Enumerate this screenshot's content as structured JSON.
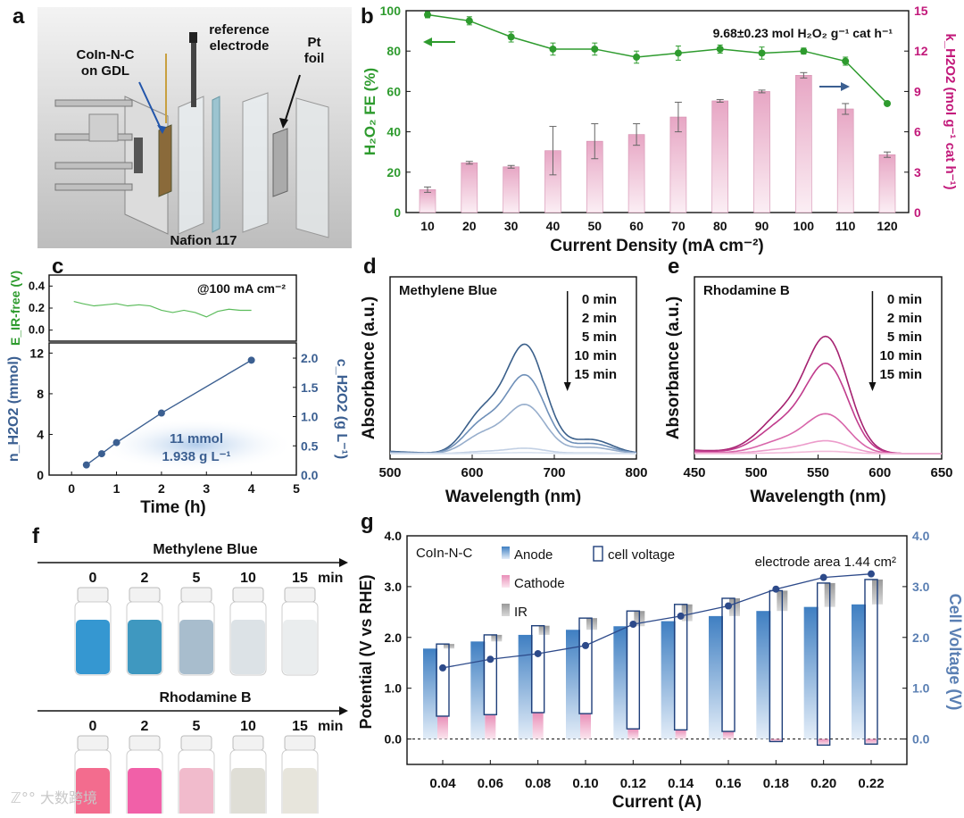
{
  "panel_labels": {
    "a": "a",
    "b": "b",
    "c": "c",
    "d": "d",
    "e": "e",
    "f": "f",
    "g": "g"
  },
  "panel_a": {
    "labels": [
      "CoIn-N-C",
      "on GDL",
      "reference",
      "electrode",
      "Pt",
      "foil",
      "Nafion 117"
    ]
  },
  "watermark": "ℤ°° 大数跨境",
  "colors": {
    "green": "#2e9b2e",
    "magenta": "#c2187a",
    "blue": "#3b5f91",
    "pink_bar": "#f3c4d8",
    "blue_bar": "#4a86c6",
    "gray_bar": "#a9a9a9"
  },
  "chart_data": [
    {
      "id": "b",
      "type": "bar",
      "categories": [
        10,
        20,
        30,
        40,
        50,
        60,
        70,
        80,
        90,
        100,
        110,
        120
      ],
      "xlabel": "Current Density (mA cm⁻²)",
      "ylabel_left": "H₂O₂ FE (%)",
      "ylabel_right": "k_H2O2 (mol g⁻¹ cat h⁻¹)",
      "ylim_left": [
        0,
        100
      ],
      "ylim_right": [
        0,
        15
      ],
      "yticks_left": [
        0,
        20,
        40,
        60,
        80,
        100
      ],
      "yticks_right": [
        0,
        3,
        6,
        9,
        12,
        15
      ],
      "annotation": "9.68±0.23 mol H₂O₂ g⁻¹ cat h⁻¹",
      "series": [
        {
          "kind": "line",
          "axis": "left",
          "values": [
            98,
            95,
            87,
            81,
            81,
            77,
            79,
            81,
            79,
            80,
            75,
            54
          ],
          "errors": [
            1.5,
            2,
            2.5,
            3,
            3,
            3,
            3.5,
            2,
            3,
            1.5,
            2,
            1
          ]
        },
        {
          "kind": "bar",
          "axis": "right",
          "values": [
            1.7,
            3.7,
            3.4,
            4.6,
            5.3,
            5.8,
            7.1,
            8.3,
            9.0,
            10.2,
            7.7,
            4.3
          ],
          "errors": [
            0.2,
            0.1,
            0.1,
            1.8,
            1.3,
            0.8,
            1.1,
            0.1,
            0.1,
            0.2,
            0.4,
            0.2
          ]
        }
      ]
    },
    {
      "id": "c_top",
      "type": "line",
      "ylabel": "E_IR-free (V)",
      "annotation": "@100 mA cm⁻²",
      "ylim": [
        -0.1,
        0.5
      ],
      "yticks": [
        0.0,
        0.2,
        0.4
      ],
      "x": [
        0.05,
        0.25,
        0.5,
        0.75,
        1.0,
        1.25,
        1.5,
        1.75,
        2.0,
        2.25,
        2.5,
        2.75,
        3.0,
        3.25,
        3.5,
        3.75,
        4.0
      ],
      "y": [
        0.26,
        0.24,
        0.22,
        0.23,
        0.24,
        0.22,
        0.23,
        0.22,
        0.18,
        0.16,
        0.18,
        0.16,
        0.12,
        0.17,
        0.19,
        0.18,
        0.18
      ]
    },
    {
      "id": "c_bottom",
      "type": "line",
      "xlabel": "Time (h)",
      "ylabel_left": "n_H2O2 (mmol)",
      "ylabel_right": "c_H2O2 (g L⁻¹)",
      "xlim": [
        -0.5,
        5
      ],
      "ylim_left": [
        0,
        13
      ],
      "ylim_right": [
        0,
        2.26
      ],
      "xticks": [
        0,
        1,
        2,
        3,
        4,
        5
      ],
      "yticks_left": [
        0,
        4,
        8,
        12
      ],
      "yticks_right": [
        0.0,
        0.5,
        1.0,
        1.5,
        2.0
      ],
      "x": [
        0.33,
        0.67,
        1.0,
        2.0,
        4.0
      ],
      "y": [
        1.0,
        2.1,
        3.2,
        6.1,
        11.3
      ],
      "annotation_1": "11 mmol",
      "annotation_2": "1.938 g L⁻¹"
    },
    {
      "id": "d",
      "type": "line",
      "title": "Methylene Blue",
      "xlabel": "Wavelength (nm)",
      "ylabel": "Absorbance (a.u.)",
      "xlim": [
        500,
        800
      ],
      "xticks": [
        500,
        600,
        700,
        800
      ],
      "legend": [
        "0 min",
        "2 min",
        "5 min",
        "10 min",
        "15 min"
      ],
      "series": [
        {
          "name": "0 min",
          "peak": 1.0,
          "shoulder": 0.6
        },
        {
          "name": "2 min",
          "peak": 0.72,
          "shoulder": 0.45
        },
        {
          "name": "5 min",
          "peak": 0.45,
          "shoulder": 0.28
        },
        {
          "name": "10 min",
          "peak": 0.05,
          "shoulder": 0.03
        },
        {
          "name": "15 min",
          "peak": 0.01,
          "shoulder": 0.005
        }
      ]
    },
    {
      "id": "e",
      "type": "line",
      "title": "Rhodamine B",
      "xlabel": "Wavelength (nm)",
      "ylabel": "Absorbance (a.u.)",
      "xlim": [
        450,
        650
      ],
      "xticks": [
        450,
        500,
        550,
        600,
        650
      ],
      "legend": [
        "0 min",
        "2 min",
        "5 min",
        "10 min",
        "15 min"
      ],
      "series": [
        {
          "name": "0 min",
          "peak": 1.0
        },
        {
          "name": "2 min",
          "peak": 0.77
        },
        {
          "name": "5 min",
          "peak": 0.34
        },
        {
          "name": "10 min",
          "peak": 0.11
        },
        {
          "name": "15 min",
          "peak": 0.02
        }
      ]
    },
    {
      "id": "g",
      "type": "bar",
      "categories": [
        "0.04",
        "0.06",
        "0.08",
        "0.10",
        "0.12",
        "0.14",
        "0.16",
        "0.18",
        "0.20",
        "0.22"
      ],
      "xlabel": "Current (A)",
      "ylabel_left": "Potential (V vs RHE)",
      "ylabel_right": "Cell Voltage (V)",
      "ylim": [
        -0.5,
        4.0
      ],
      "yticks": [
        0.0,
        1.0,
        2.0,
        3.0,
        4.0
      ],
      "legend_title": "CoIn-N-C",
      "legend": [
        "Anode",
        "Cathode",
        "IR",
        "cell voltage"
      ],
      "annotation": "electrode area 1.44 cm²",
      "anode": [
        1.78,
        1.92,
        2.05,
        2.15,
        2.22,
        2.32,
        2.42,
        2.52,
        2.6,
        2.65
      ],
      "cathode": [
        0.45,
        0.48,
        0.52,
        0.5,
        0.2,
        0.18,
        0.15,
        -0.05,
        -0.12,
        -0.1
      ],
      "ir_top": [
        1.87,
        2.05,
        2.23,
        2.38,
        2.52,
        2.65,
        2.77,
        2.92,
        3.07,
        3.14
      ],
      "cell_voltage": [
        1.4,
        1.57,
        1.68,
        1.84,
        2.26,
        2.42,
        2.62,
        2.95,
        3.18,
        3.25
      ]
    }
  ]
}
